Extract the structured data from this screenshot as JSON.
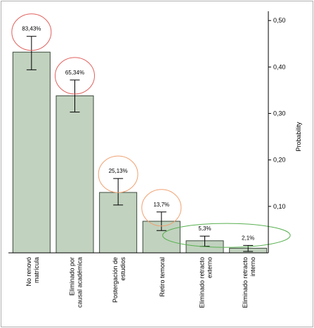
{
  "chart_data": {
    "type": "bar",
    "categories": [
      [
        "No renovó",
        "matrícula"
      ],
      [
        "Eliminado por",
        "causal académica"
      ],
      [
        "Postergación de",
        "estudios"
      ],
      [
        "Retiro temoral"
      ],
      [
        "Eliminado retracto",
        "externo"
      ],
      [
        "Eliminado retracto",
        "interno"
      ]
    ],
    "values": [
      0.432,
      0.338,
      0.13,
      0.068,
      0.026,
      0.01
    ],
    "error_low": [
      0.394,
      0.303,
      0.103,
      0.048,
      0.014,
      0.003
    ],
    "error_high": [
      0.466,
      0.372,
      0.16,
      0.088,
      0.036,
      0.016
    ],
    "data_labels": [
      "83,43%",
      "65,34%",
      "25,13%",
      "13,7%",
      "5,3%",
      "2,1%"
    ],
    "ylabel": "Probability",
    "ylim": [
      0,
      0.52
    ],
    "yticks": [
      0.1,
      0.2,
      0.3,
      0.4,
      0.5
    ],
    "ytick_labels": [
      "0,10",
      "0,20",
      "0,30",
      "0,40",
      "0,50"
    ],
    "y_axis_side": "right",
    "grid": false,
    "colors": {
      "bar_fill": "#c1d2bf",
      "bar_stroke": "#3c4b3c",
      "axis": "#000000",
      "frame": "#b0b0b0",
      "error_bar": "#000000",
      "highlight_red": "#e0605c",
      "highlight_orange": "#f0a070",
      "highlight_green": "#58b050"
    },
    "highlight_groups": [
      {
        "color": "red",
        "bars": [
          0
        ]
      },
      {
        "color": "red",
        "bars": [
          1
        ]
      },
      {
        "color": "orange",
        "bars": [
          2
        ]
      },
      {
        "color": "orange",
        "bars": [
          3
        ]
      },
      {
        "color": "green",
        "bars": [
          4,
          5
        ]
      }
    ]
  }
}
